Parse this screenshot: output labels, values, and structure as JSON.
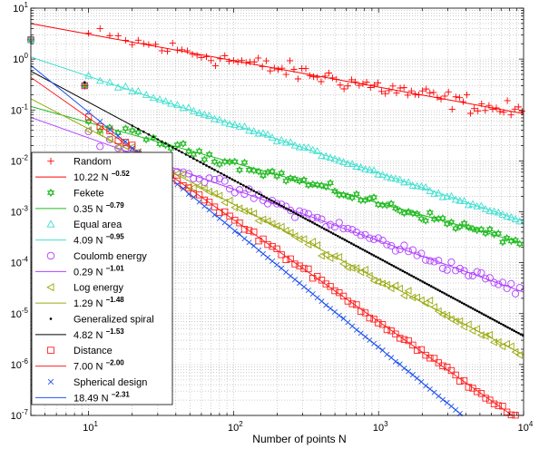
{
  "chart_data": {
    "type": "scatter",
    "title": "",
    "xlabel": "Number of points N",
    "ylabel": "",
    "xscale": "log",
    "yscale": "log",
    "xlim": [
      4,
      10000
    ],
    "ylim": [
      1e-07,
      10
    ],
    "grid": true,
    "legend_position": "left",
    "x_ticks": [
      {
        "base": "10",
        "exp": "1"
      },
      {
        "base": "10",
        "exp": "2"
      },
      {
        "base": "10",
        "exp": "3"
      },
      {
        "base": "10",
        "exp": "4"
      }
    ],
    "y_ticks": [
      {
        "base": "10",
        "exp": "-7"
      },
      {
        "base": "10",
        "exp": "-6"
      },
      {
        "base": "10",
        "exp": "-5"
      },
      {
        "base": "10",
        "exp": "-4"
      },
      {
        "base": "10",
        "exp": "-3"
      },
      {
        "base": "10",
        "exp": "-2"
      },
      {
        "base": "10",
        "exp": "-1"
      },
      {
        "base": "10",
        "exp": "0"
      },
      {
        "base": "10",
        "exp": "1"
      }
    ],
    "series": [
      {
        "name": "Random",
        "marker": "plus",
        "color": "#ff0000",
        "fit": {
          "coef": 10.22,
          "exp": -0.52,
          "coef_label": "10.22",
          "exp_label": "−0.52",
          "color": "#ff0000"
        },
        "noise": 0.15
      },
      {
        "name": "Fekete",
        "marker": "star6",
        "color": "#22bb22",
        "fit": {
          "coef": 0.35,
          "exp": -0.79,
          "coef_label": "0.35",
          "exp_label": "−0.79",
          "color": "#22bb22"
        },
        "noise": 0.08
      },
      {
        "name": "Equal area",
        "marker": "triangle-up",
        "color": "#40e0d0",
        "fit": {
          "coef": 4.09,
          "exp": -0.95,
          "coef_label": "4.09",
          "exp_label": "−0.95",
          "color": "#40e0d0"
        },
        "noise": 0.03
      },
      {
        "name": "Coulomb energy",
        "marker": "circle",
        "color": "#b040ff",
        "fit": {
          "coef": 0.29,
          "exp": -1.01,
          "coef_label": "0.29",
          "exp_label": "−1.01",
          "color": "#b040ff"
        },
        "noise": 0.09
      },
      {
        "name": "Log energy",
        "marker": "triangle-left",
        "color": "#9aaa10",
        "fit": {
          "coef": 1.29,
          "exp": -1.48,
          "coef_label": "1.29",
          "exp_label": "−1.48",
          "color": "#9aaa10"
        },
        "noise": 0.08
      },
      {
        "name": "Generalized spiral",
        "marker": "dot",
        "color": "#000000",
        "fit": {
          "coef": 4.82,
          "exp": -1.53,
          "coef_label": "4.82",
          "exp_label": "−1.53",
          "color": "#000000"
        },
        "noise": 0.0
      },
      {
        "name": "Distance",
        "marker": "square",
        "color": "#ff2020",
        "fit": {
          "coef": 7.0,
          "exp": -2.0,
          "coef_label": "7.00",
          "exp_label": "−2.00",
          "color": "#ff2020"
        },
        "noise": 0.05
      },
      {
        "name": "Spherical design",
        "marker": "x",
        "color": "#2255ee",
        "fit": {
          "coef": 18.49,
          "exp": -2.31,
          "coef_label": "18.49",
          "exp_label": "−2.31",
          "color": "#2255ee"
        },
        "noise": 0.01
      }
    ]
  }
}
